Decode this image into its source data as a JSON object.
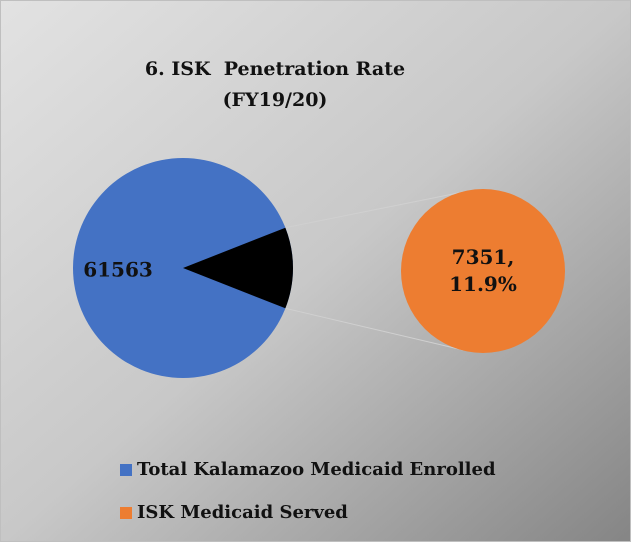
{
  "chart_data": {
    "type": "pie",
    "title": [
      "6. ISK  Penetration Rate",
      "(FY19/20)"
    ],
    "categories": [
      "Total Kalamazoo Medicaid Enrolled",
      "ISK Medicaid Served"
    ],
    "values": [
      61563,
      7351
    ],
    "value_labels": [
      "61563",
      "7351, 11.9%"
    ],
    "colors": [
      "#4472c4",
      "#ed7d31"
    ],
    "wedge_color": "#000000",
    "legend": "bottom"
  }
}
